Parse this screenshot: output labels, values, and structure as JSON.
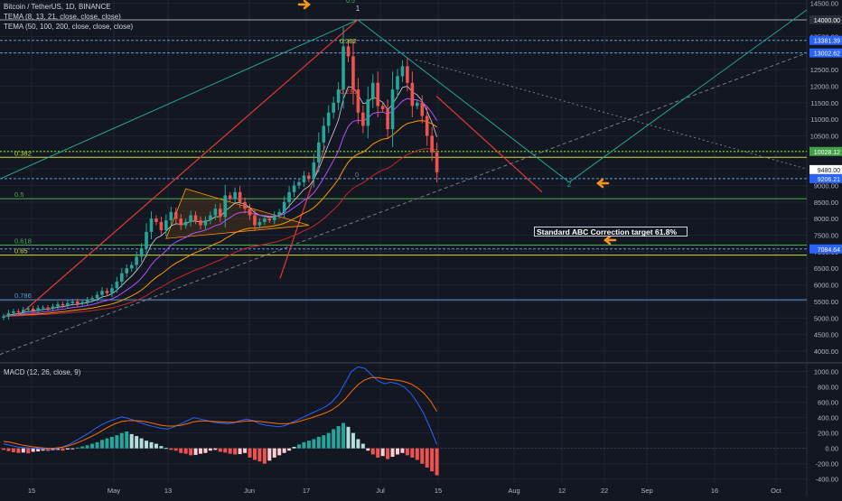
{
  "header": {
    "title": "Bitcoin / TetherUS, 1D, BINANCE",
    "indicator1": "TEMA (8, 13, 21, close, close, close)",
    "indicator2": "TEMA (50, 100, 200, close, close, close)",
    "macd_label": "MACD (12, 26, close, 9)"
  },
  "annotation": {
    "callout": "Standard ABC Correction target 61.8%",
    "wave_labels": [
      "1",
      "2",
      "0.5",
      "0.382",
      "0.236",
      "0"
    ]
  },
  "colors": {
    "background": "#131722",
    "grid": "#1f2433",
    "up": "#26a69a",
    "down": "#ef5350",
    "macd": "#2962ff",
    "signal": "#ff6d00",
    "tema_fast": "#b84dff",
    "tema_mid": "#ff9800",
    "tema_slow": "#c62828",
    "arrow": "#f7931a",
    "fib_green": "#4caf50",
    "fib_yellow": "#cddc39"
  },
  "chart_data": [
    {
      "type": "candlestick",
      "title": "Bitcoin / TetherUS, 1D, BINANCE",
      "x_ticks": [
        "15",
        "May",
        "13",
        "Jun",
        "17",
        "Jul",
        "15",
        "Aug",
        "12",
        "22",
        "Sep",
        "16",
        "Oct"
      ],
      "y_ticks": [
        14500,
        14000,
        13500,
        13000,
        12500,
        12000,
        11500,
        11000,
        10500,
        10000,
        9500,
        9000,
        8500,
        8000,
        7500,
        7000,
        6500,
        6000,
        5500,
        5000,
        4500,
        4000
      ],
      "ylim": [
        3700,
        14600
      ],
      "series": [
        {
          "name": "Price",
          "values": [
            5050,
            5150,
            5200,
            5170,
            5250,
            5280,
            5220,
            5300,
            5320,
            5290,
            5350,
            5420,
            5380,
            5450,
            5500,
            5430,
            5480,
            5550,
            5600,
            5700,
            5820,
            5750,
            5900,
            6100,
            6350,
            6500,
            6600,
            6850,
            7100,
            7600,
            8000,
            7900,
            7650,
            7950,
            8200,
            8000,
            7800,
            7900,
            8100,
            7950,
            7800,
            7950,
            8100,
            8300,
            8050,
            8700,
            8600,
            8800,
            8500,
            8300,
            8100,
            7800,
            7900,
            8000,
            7950,
            8100,
            8200,
            8500,
            8800,
            9000,
            9100,
            9300,
            9200,
            9700,
            10300,
            10800,
            11200,
            11500,
            11900,
            13200,
            12900,
            11900,
            11200,
            10800,
            11600,
            12100,
            11400,
            11300,
            10700,
            11900,
            12300,
            12600,
            12100,
            11400,
            11500,
            11100,
            10500,
            10000,
            9400
          ]
        }
      ],
      "price_labels": [
        "14000.00",
        "13381.39",
        "13002.62",
        "10028.12",
        "9480.00",
        "9206.21",
        "7084.64"
      ],
      "fib_levels": [
        {
          "label": "0.382",
          "value": 9850
        },
        {
          "label": "0.5",
          "value": 8600
        },
        {
          "label": "0.618",
          "value": 7200
        },
        {
          "label": "0.65",
          "value": 6900
        },
        {
          "label": "0.786",
          "value": 5550
        }
      ]
    },
    {
      "type": "bar",
      "title": "MACD (12, 26, close, 9)",
      "y_ticks": [
        1000.0,
        800.0,
        600.0,
        400.0,
        200.0,
        0.0,
        -200.0,
        -400.0
      ],
      "ylim": [
        -450,
        1100
      ],
      "series": [
        {
          "name": "Histogram",
          "values": [
            -20,
            -35,
            -50,
            -60,
            -55,
            -65,
            -45,
            -40,
            -30,
            -35,
            -25,
            -20,
            -30,
            -15,
            -5,
            10,
            25,
            40,
            60,
            80,
            110,
            130,
            150,
            170,
            200,
            220,
            185,
            160,
            130,
            100,
            80,
            60,
            30,
            5,
            -20,
            -30,
            -60,
            -70,
            -90,
            -85,
            -70,
            -60,
            -30,
            -20,
            -45,
            -55,
            -70,
            -80,
            -75,
            -60,
            -120,
            -150,
            -170,
            -200,
            -160,
            -120,
            -90,
            -60,
            -30,
            20,
            50,
            80,
            100,
            120,
            150,
            170,
            200,
            250,
            290,
            330,
            280,
            200,
            120,
            60,
            -30,
            -80,
            -120,
            -100,
            -140,
            -110,
            -80,
            -60,
            -90,
            -120,
            -150,
            -200,
            -250,
            -300,
            -350
          ]
        },
        {
          "name": "MACD",
          "values": [
            60,
            40,
            20,
            10,
            5,
            0,
            -10,
            -20,
            -10,
            20,
            50,
            100,
            150,
            200,
            260,
            310,
            350,
            380,
            410,
            390,
            360,
            330,
            300,
            280,
            260,
            250,
            280,
            320,
            360,
            400,
            380,
            360,
            340,
            330,
            320,
            330,
            360,
            380,
            360,
            320,
            300,
            290,
            280,
            300,
            340,
            380,
            420,
            460,
            500,
            540,
            600,
            700,
            850,
            1000,
            1060,
            1040,
            960,
            880,
            840,
            860,
            840,
            800,
            720,
            600,
            450,
            260,
            50
          ]
        },
        {
          "name": "Signal",
          "values": [
            90,
            80,
            60,
            40,
            25,
            15,
            5,
            0,
            5,
            15,
            35,
            65,
            100,
            140,
            180,
            230,
            280,
            320,
            350,
            360,
            360,
            355,
            340,
            320,
            300,
            290,
            290,
            300,
            320,
            345,
            355,
            355,
            350,
            345,
            340,
            338,
            345,
            355,
            357,
            350,
            340,
            330,
            320,
            320,
            330,
            350,
            375,
            400,
            430,
            460,
            500,
            560,
            640,
            740,
            830,
            890,
            920,
            920,
            905,
            895,
            885,
            870,
            840,
            790,
            720,
            620,
            480
          ]
        }
      ]
    }
  ]
}
